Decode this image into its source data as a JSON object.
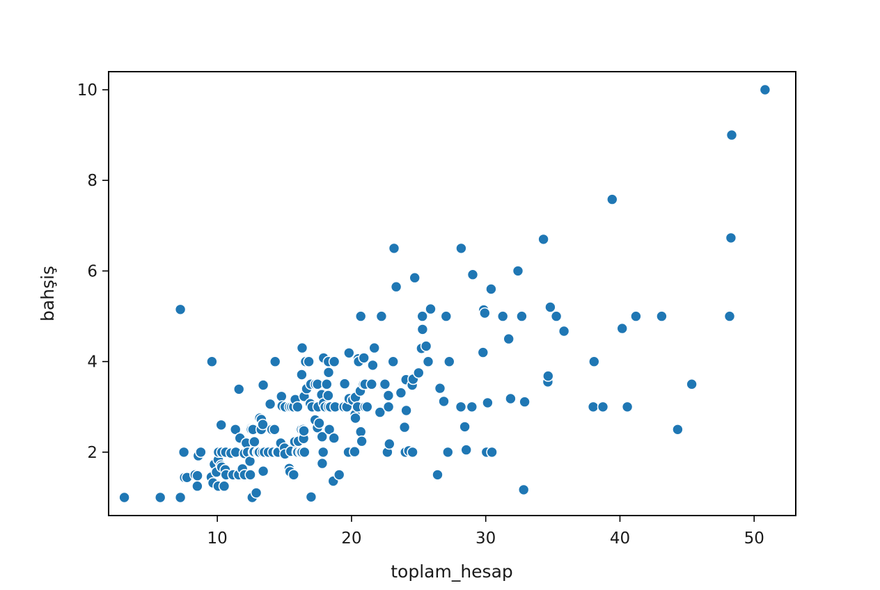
{
  "chart_data": {
    "type": "scatter",
    "title": "",
    "xlabel": "toplam_hesap",
    "ylabel": "bahşiş",
    "xlim": [
      1.9,
      53.1
    ],
    "ylim": [
      0.6,
      10.4
    ],
    "xticks": [
      10,
      20,
      30,
      40,
      50
    ],
    "yticks": [
      2,
      4,
      6,
      8,
      10
    ],
    "grid": false,
    "legend": "none",
    "colors": {
      "point_fill": "#1f77b4",
      "point_edge": "#ffffff",
      "axes": "#000000"
    },
    "points": [
      [
        3.07,
        1.0
      ],
      [
        5.75,
        1.0
      ],
      [
        7.25,
        1.0
      ],
      [
        7.25,
        5.15
      ],
      [
        7.51,
        2.0
      ],
      [
        7.56,
        1.44
      ],
      [
        7.74,
        1.44
      ],
      [
        8.35,
        1.5
      ],
      [
        8.51,
        1.25
      ],
      [
        8.52,
        1.48
      ],
      [
        8.58,
        1.92
      ],
      [
        8.77,
        2.0
      ],
      [
        9.55,
        1.45
      ],
      [
        9.6,
        4.0
      ],
      [
        9.68,
        1.32
      ],
      [
        9.78,
        1.73
      ],
      [
        9.94,
        1.56
      ],
      [
        10.07,
        1.83
      ],
      [
        10.07,
        1.25
      ],
      [
        10.09,
        2.0
      ],
      [
        10.27,
        1.71
      ],
      [
        10.29,
        2.6
      ],
      [
        10.33,
        1.67
      ],
      [
        10.34,
        2.0
      ],
      [
        10.51,
        1.25
      ],
      [
        10.59,
        1.61
      ],
      [
        10.63,
        2.0
      ],
      [
        10.65,
        1.5
      ],
      [
        11.02,
        1.98
      ],
      [
        11.17,
        1.5
      ],
      [
        11.35,
        2.5
      ],
      [
        11.38,
        2.0
      ],
      [
        11.59,
        1.5
      ],
      [
        11.61,
        3.39
      ],
      [
        11.69,
        2.31
      ],
      [
        11.87,
        1.63
      ],
      [
        12.02,
        1.97
      ],
      [
        12.03,
        1.5
      ],
      [
        12.16,
        2.2
      ],
      [
        12.26,
        2.0
      ],
      [
        12.43,
        1.8
      ],
      [
        12.46,
        1.5
      ],
      [
        12.48,
        2.52
      ],
      [
        12.54,
        2.5
      ],
      [
        12.6,
        1.0
      ],
      [
        12.66,
        2.5
      ],
      [
        12.69,
        2.0
      ],
      [
        12.74,
        2.01
      ],
      [
        12.76,
        2.23
      ],
      [
        12.9,
        1.1
      ],
      [
        13.0,
        2.0
      ],
      [
        13.03,
        2.0
      ],
      [
        13.13,
        2.0
      ],
      [
        13.16,
        2.75
      ],
      [
        13.27,
        2.5
      ],
      [
        13.28,
        2.72
      ],
      [
        13.37,
        2.0
      ],
      [
        13.39,
        2.61
      ],
      [
        13.42,
        3.48
      ],
      [
        13.42,
        1.58
      ],
      [
        13.51,
        2.0
      ],
      [
        13.81,
        2.0
      ],
      [
        13.94,
        3.06
      ],
      [
        14.07,
        2.5
      ],
      [
        14.15,
        2.0
      ],
      [
        14.26,
        2.5
      ],
      [
        14.31,
        4.0
      ],
      [
        14.48,
        2.0
      ],
      [
        14.52,
        2.0
      ],
      [
        14.73,
        2.2
      ],
      [
        14.78,
        3.23
      ],
      [
        14.83,
        3.02
      ],
      [
        15.01,
        2.09
      ],
      [
        15.04,
        1.96
      ],
      [
        15.06,
        3.0
      ],
      [
        15.36,
        1.64
      ],
      [
        15.38,
        3.0
      ],
      [
        15.42,
        1.57
      ],
      [
        15.48,
        2.02
      ],
      [
        15.53,
        3.0
      ],
      [
        15.69,
        1.5
      ],
      [
        15.69,
        3.0
      ],
      [
        15.77,
        2.23
      ],
      [
        15.81,
        3.16
      ],
      [
        15.95,
        2.0
      ],
      [
        15.98,
        2.03
      ],
      [
        15.98,
        3.0
      ],
      [
        16.0,
        2.0
      ],
      [
        16.04,
        2.24
      ],
      [
        16.21,
        2.0
      ],
      [
        16.27,
        2.5
      ],
      [
        16.29,
        3.71
      ],
      [
        16.31,
        2.0
      ],
      [
        16.32,
        4.3
      ],
      [
        16.4,
        2.5
      ],
      [
        16.43,
        2.3
      ],
      [
        16.45,
        2.47
      ],
      [
        16.47,
        3.23
      ],
      [
        16.49,
        2.0
      ],
      [
        16.58,
        4.0
      ],
      [
        16.66,
        3.4
      ],
      [
        16.82,
        4.0
      ],
      [
        16.93,
        3.07
      ],
      [
        16.97,
        3.5
      ],
      [
        16.99,
        1.01
      ],
      [
        17.07,
        3.0
      ],
      [
        17.29,
        2.71
      ],
      [
        17.31,
        3.5
      ],
      [
        17.46,
        2.54
      ],
      [
        17.47,
        3.5
      ],
      [
        17.51,
        3.0
      ],
      [
        17.59,
        2.64
      ],
      [
        17.78,
        3.27
      ],
      [
        17.81,
        2.34
      ],
      [
        17.82,
        1.75
      ],
      [
        17.89,
        2.0
      ],
      [
        17.92,
        4.08
      ],
      [
        17.92,
        3.08
      ],
      [
        18.04,
        3.0
      ],
      [
        18.15,
        3.5
      ],
      [
        18.24,
        3.76
      ],
      [
        18.26,
        3.25
      ],
      [
        18.28,
        4.0
      ],
      [
        18.29,
        3.0
      ],
      [
        18.29,
        3.76
      ],
      [
        18.35,
        2.5
      ],
      [
        18.43,
        3.0
      ],
      [
        18.64,
        1.36
      ],
      [
        18.69,
        2.31
      ],
      [
        18.71,
        4.0
      ],
      [
        18.78,
        3.0
      ],
      [
        19.08,
        1.5
      ],
      [
        19.44,
        3.0
      ],
      [
        19.49,
        3.51
      ],
      [
        19.65,
        3.0
      ],
      [
        19.77,
        2.0
      ],
      [
        19.81,
        4.19
      ],
      [
        19.82,
        3.18
      ],
      [
        20.08,
        3.15
      ],
      [
        20.23,
        2.01
      ],
      [
        20.27,
        2.83
      ],
      [
        20.29,
        2.75
      ],
      [
        20.29,
        3.21
      ],
      [
        20.45,
        3.0
      ],
      [
        20.49,
        4.06
      ],
      [
        20.53,
        4.0
      ],
      [
        20.65,
        3.35
      ],
      [
        20.69,
        2.45
      ],
      [
        20.69,
        5.0
      ],
      [
        20.76,
        2.24
      ],
      [
        20.9,
        3.5
      ],
      [
        20.92,
        4.08
      ],
      [
        21.01,
        3.5
      ],
      [
        21.01,
        3.0
      ],
      [
        21.16,
        3.0
      ],
      [
        21.5,
        3.5
      ],
      [
        21.58,
        3.92
      ],
      [
        21.7,
        4.3
      ],
      [
        22.12,
        2.88
      ],
      [
        22.23,
        5.0
      ],
      [
        22.42,
        3.48
      ],
      [
        22.49,
        3.5
      ],
      [
        22.67,
        2.0
      ],
      [
        22.75,
        3.25
      ],
      [
        22.76,
        3.0
      ],
      [
        22.82,
        2.18
      ],
      [
        23.1,
        4.0
      ],
      [
        23.17,
        6.5
      ],
      [
        23.33,
        5.65
      ],
      [
        23.68,
        3.31
      ],
      [
        23.95,
        2.55
      ],
      [
        24.01,
        2.0
      ],
      [
        24.06,
        3.6
      ],
      [
        24.08,
        2.92
      ],
      [
        24.27,
        2.03
      ],
      [
        24.52,
        3.48
      ],
      [
        24.55,
        2.0
      ],
      [
        24.59,
        3.61
      ],
      [
        24.71,
        5.85
      ],
      [
        25.0,
        3.75
      ],
      [
        25.21,
        4.29
      ],
      [
        25.28,
        5.0
      ],
      [
        25.29,
        4.71
      ],
      [
        25.56,
        4.34
      ],
      [
        25.71,
        4.0
      ],
      [
        25.89,
        5.16
      ],
      [
        26.41,
        1.5
      ],
      [
        26.59,
        3.41
      ],
      [
        26.86,
        3.14
      ],
      [
        26.88,
        3.12
      ],
      [
        27.05,
        5.0
      ],
      [
        27.18,
        2.0
      ],
      [
        27.2,
        4.0
      ],
      [
        27.28,
        4.0
      ],
      [
        28.15,
        3.0
      ],
      [
        28.17,
        6.5
      ],
      [
        28.44,
        2.56
      ],
      [
        28.55,
        2.05
      ],
      [
        28.97,
        3.0
      ],
      [
        29.03,
        5.92
      ],
      [
        29.8,
        4.2
      ],
      [
        29.85,
        5.14
      ],
      [
        29.93,
        5.07
      ],
      [
        30.06,
        2.0
      ],
      [
        30.14,
        3.09
      ],
      [
        30.4,
        5.6
      ],
      [
        30.46,
        2.0
      ],
      [
        31.27,
        5.0
      ],
      [
        31.71,
        4.5
      ],
      [
        31.85,
        3.18
      ],
      [
        32.4,
        6.0
      ],
      [
        32.68,
        5.0
      ],
      [
        32.83,
        1.17
      ],
      [
        32.9,
        3.11
      ],
      [
        34.3,
        6.7
      ],
      [
        34.63,
        3.55
      ],
      [
        34.65,
        3.68
      ],
      [
        34.81,
        5.2
      ],
      [
        35.26,
        5.0
      ],
      [
        35.83,
        4.67
      ],
      [
        38.01,
        3.0
      ],
      [
        38.07,
        4.0
      ],
      [
        38.73,
        3.0
      ],
      [
        39.42,
        7.58
      ],
      [
        40.17,
        4.73
      ],
      [
        40.55,
        3.0
      ],
      [
        41.19,
        5.0
      ],
      [
        43.11,
        5.0
      ],
      [
        44.3,
        2.5
      ],
      [
        45.35,
        3.5
      ],
      [
        48.17,
        5.0
      ],
      [
        48.27,
        6.73
      ],
      [
        48.33,
        9.0
      ],
      [
        50.81,
        10.0
      ]
    ]
  }
}
